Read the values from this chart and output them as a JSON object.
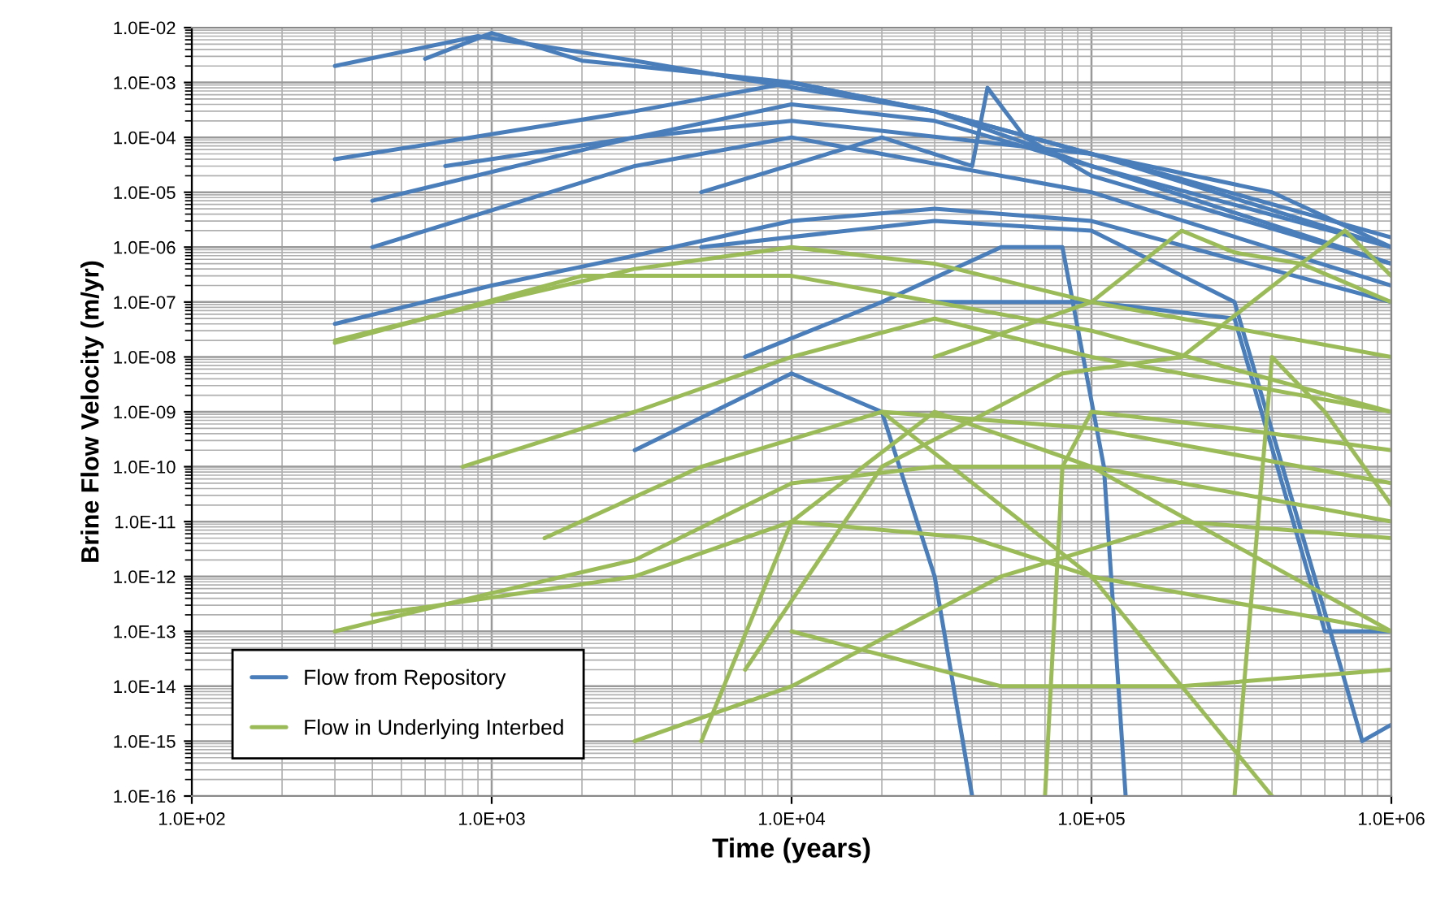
{
  "chart_data": {
    "type": "line",
    "xlabel": "Time (years)",
    "ylabel": "Brine Flow Velocity (m/yr)",
    "log": "xy",
    "grid": true,
    "legend": "bottom left",
    "marker": "none",
    "line_style": "solid",
    "xlim": [
      100,
      1000000
    ],
    "xticks": [
      {
        "value": 100,
        "label": "1.0E+02"
      },
      {
        "value": 1000,
        "label": "1.0E+03"
      },
      {
        "value": 10000,
        "label": "1.0E+04"
      },
      {
        "value": 100000,
        "label": "1.0E+05"
      },
      {
        "value": 1000000,
        "label": "1.0E+06"
      }
    ],
    "ylim": [
      1e-16,
      0.01
    ],
    "yticks": [
      {
        "value": 1e-16,
        "label": "1.0E-16"
      },
      {
        "value": 1e-15,
        "label": "1.0E-15"
      },
      {
        "value": 1e-14,
        "label": "1.0E-14"
      },
      {
        "value": 1e-13,
        "label": "1.0E-13"
      },
      {
        "value": 1e-12,
        "label": "1.0E-12"
      },
      {
        "value": 1e-11,
        "label": "1.0E-11"
      },
      {
        "value": 1e-10,
        "label": "1.0E-10"
      },
      {
        "value": 1e-09,
        "label": "1.0E-09"
      },
      {
        "value": 1e-08,
        "label": "1.0E-08"
      },
      {
        "value": 1e-07,
        "label": "1.0E-07"
      },
      {
        "value": 1e-06,
        "label": "1.0E-06"
      },
      {
        "value": 1e-05,
        "label": "1.0E-05"
      },
      {
        "value": 0.0001,
        "label": "1.0E-04"
      },
      {
        "value": 0.001,
        "label": "1.0E-03"
      },
      {
        "value": 0.01,
        "label": "1.0E-02"
      }
    ],
    "series": [
      {
        "name": "Flow from Repository",
        "color": "#4a7ebb",
        "x": [
          300,
          900,
          3000,
          8000,
          30000,
          100000,
          1000000
        ],
        "values": [
          0.002,
          0.007,
          0.0025,
          0.001,
          0.0003,
          5e-05,
          1.5e-06
        ]
      },
      {
        "color": "#4a7ebb",
        "x": [
          600,
          1000,
          2000,
          5000,
          10000,
          30000,
          100000,
          1000000
        ],
        "values": [
          0.0027,
          0.008,
          0.0025,
          0.0015,
          0.001,
          0.0003,
          5e-05,
          1e-06
        ]
      },
      {
        "color": "#4a7ebb",
        "x": [
          300,
          3000,
          10000,
          30000,
          100000,
          1000000
        ],
        "values": [
          4e-05,
          0.0003,
          0.001,
          0.0003,
          3e-05,
          1e-06
        ]
      },
      {
        "color": "#4a7ebb",
        "x": [
          400,
          3000,
          10000,
          30000,
          100000,
          1000000
        ],
        "values": [
          7e-06,
          0.0001,
          0.0004,
          0.0002,
          3e-05,
          5e-07
        ]
      },
      {
        "color": "#4a7ebb",
        "x": [
          400,
          3000,
          10000,
          100000,
          1000000
        ],
        "values": [
          1e-06,
          3e-05,
          0.0001,
          1e-05,
          2e-07
        ]
      },
      {
        "color": "#4a7ebb",
        "x": [
          300,
          1000,
          3000,
          10000,
          30000,
          100000,
          1000000
        ],
        "values": [
          4e-08,
          2e-07,
          7e-07,
          3e-06,
          5e-06,
          3e-06,
          1e-07
        ]
      },
      {
        "color": "#4a7ebb",
        "x": [
          5000,
          20000,
          40000,
          45000,
          60000,
          100000,
          1000000
        ],
        "values": [
          1e-05,
          0.0001,
          3e-05,
          0.0008,
          0.0001,
          2e-05,
          5e-07
        ]
      },
      {
        "color": "#4a7ebb",
        "x": [
          3000,
          10000,
          20000,
          30000,
          40000
        ],
        "values": [
          2e-10,
          5e-09,
          1e-09,
          1e-12,
          1e-16
        ]
      },
      {
        "color": "#4a7ebb",
        "x": [
          7000,
          20000,
          50000,
          80000,
          110000,
          130000
        ],
        "values": [
          1e-08,
          1e-07,
          1e-06,
          1e-06,
          1e-10,
          1e-16
        ]
      },
      {
        "color": "#4a7ebb",
        "x": [
          5000,
          30000,
          100000,
          300000,
          800000,
          1000000
        ],
        "values": [
          1e-06,
          3e-06,
          2e-06,
          1e-07,
          1e-15,
          2e-15
        ]
      },
      {
        "color": "#4a7ebb",
        "x": [
          700,
          3000,
          10000,
          100000,
          400000,
          1000000
        ],
        "values": [
          3e-05,
          0.0001,
          0.0002,
          5e-05,
          1e-05,
          1e-06
        ]
      },
      {
        "color": "#4a7ebb",
        "x": [
          30000,
          100000,
          300000,
          600000,
          1000000
        ],
        "values": [
          1e-07,
          1e-07,
          5e-08,
          1e-13,
          1e-13
        ]
      },
      {
        "name": "Flow in Underlying Interbed",
        "color": "#9bbb59",
        "x": [
          300,
          1000,
          3000,
          10000,
          30000,
          100000,
          1000000
        ],
        "values": [
          2e-08,
          1e-07,
          4e-07,
          1e-06,
          5e-07,
          1e-07,
          1e-08
        ]
      },
      {
        "color": "#9bbb59",
        "x": [
          300,
          2000,
          10000,
          100000,
          1000000
        ],
        "values": [
          1.8e-08,
          3e-07,
          3e-07,
          3e-08,
          1e-09
        ]
      },
      {
        "color": "#9bbb59",
        "x": [
          300,
          1000,
          3000,
          10000,
          30000,
          100000,
          1000000
        ],
        "values": [
          1e-13,
          5e-13,
          2e-12,
          5e-11,
          1e-10,
          1e-10,
          1e-11
        ]
      },
      {
        "color": "#9bbb59",
        "x": [
          800,
          3000,
          10000,
          30000,
          100000,
          1000000
        ],
        "values": [
          1e-10,
          1e-09,
          1e-08,
          5e-08,
          1e-08,
          1e-09
        ]
      },
      {
        "color": "#9bbb59",
        "x": [
          1500,
          5000,
          20000,
          100000,
          1000000
        ],
        "values": [
          5e-12,
          1e-10,
          1e-09,
          5e-10,
          5e-11
        ]
      },
      {
        "color": "#9bbb59",
        "x": [
          3000,
          10000,
          50000,
          200000,
          1000000
        ],
        "values": [
          1e-15,
          1e-14,
          1e-12,
          1e-11,
          5e-12
        ]
      },
      {
        "color": "#9bbb59",
        "x": [
          30000,
          100000,
          200000,
          300000,
          500000,
          1000000
        ],
        "values": [
          1e-08,
          1e-07,
          2e-06,
          8e-07,
          5e-07,
          1e-07
        ]
      },
      {
        "color": "#9bbb59",
        "x": [
          5000,
          10000,
          30000,
          100000,
          1000000
        ],
        "values": [
          1e-15,
          1e-11,
          1e-09,
          1e-10,
          1e-13
        ]
      },
      {
        "color": "#9bbb59",
        "x": [
          10000,
          50000,
          200000,
          1000000
        ],
        "values": [
          1e-13,
          1e-14,
          1e-14,
          2e-14
        ]
      },
      {
        "color": "#9bbb59",
        "x": [
          70000,
          80000,
          100000,
          300000,
          1000000
        ],
        "values": [
          1e-16,
          1e-10,
          1e-09,
          5e-10,
          2e-10
        ]
      },
      {
        "color": "#9bbb59",
        "x": [
          7000,
          20000,
          80000,
          200000,
          500000,
          700000,
          1000000
        ],
        "values": [
          2e-14,
          1e-10,
          5e-09,
          1e-08,
          5e-07,
          2e-06,
          3e-07
        ]
      },
      {
        "color": "#9bbb59",
        "x": [
          20000,
          100000,
          400000
        ],
        "values": [
          1e-09,
          1e-12,
          1e-16
        ]
      },
      {
        "color": "#9bbb59",
        "x": [
          400,
          3000,
          10000,
          40000,
          100000,
          1000000
        ],
        "values": [
          2e-13,
          1e-12,
          1e-11,
          5e-12,
          1e-12,
          1e-13
        ]
      },
      {
        "color": "#9bbb59",
        "x": [
          300000,
          400000,
          600000,
          1000000
        ],
        "values": [
          1e-16,
          1e-08,
          1e-09,
          2e-11
        ]
      }
    ]
  }
}
